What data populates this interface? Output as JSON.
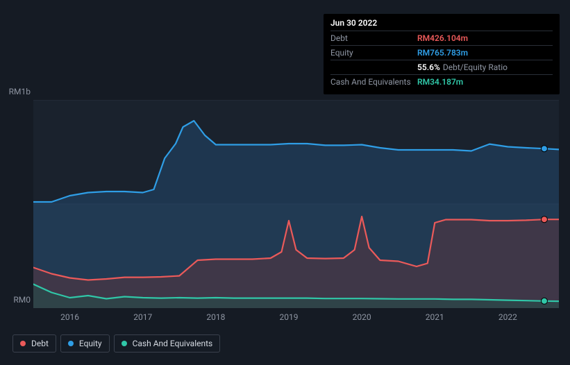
{
  "tooltip": {
    "date": "Jun 30 2022",
    "rows": [
      {
        "label": "Debt",
        "value": "RM426.104m",
        "color": "#eb5a5a",
        "suffix": ""
      },
      {
        "label": "Equity",
        "value": "RM765.783m",
        "color": "#2f9ee6",
        "suffix": ""
      },
      {
        "label": "",
        "value": "55.6%",
        "color": "#ffffff",
        "suffix": "Debt/Equity Ratio"
      },
      {
        "label": "Cash And Equivalents",
        "value": "RM34.187m",
        "color": "#30c7a8",
        "suffix": ""
      }
    ]
  },
  "chart": {
    "type": "area",
    "background": "#151b24",
    "plot_background_top": "#1a222d",
    "plot_background_bottom": "#1f2a37",
    "grid_color": "#2a3240",
    "ylabel_top": "RM1b",
    "ylabel_bottom": "RM0",
    "y_min": 0,
    "y_max": 1000,
    "y_gridlines": [
      0,
      500,
      1000
    ],
    "x_start": 2015.5,
    "x_end": 2022.7,
    "x_ticks": [
      2016,
      2017,
      2018,
      2019,
      2020,
      2021,
      2022
    ],
    "x_labels": [
      "2016",
      "2017",
      "2018",
      "2019",
      "2020",
      "2021",
      "2022"
    ],
    "marker_x": 2022.5,
    "series": [
      {
        "name": "Equity",
        "stroke": "#2f9ee6",
        "fill": "#22476b",
        "fill_opacity": 0.55,
        "stroke_width": 2.2,
        "data": [
          [
            2015.5,
            510
          ],
          [
            2015.75,
            510
          ],
          [
            2016.0,
            540
          ],
          [
            2016.25,
            555
          ],
          [
            2016.5,
            560
          ],
          [
            2016.75,
            560
          ],
          [
            2017.0,
            555
          ],
          [
            2017.15,
            570
          ],
          [
            2017.3,
            720
          ],
          [
            2017.45,
            790
          ],
          [
            2017.55,
            870
          ],
          [
            2017.7,
            900
          ],
          [
            2017.85,
            830
          ],
          [
            2018.0,
            785
          ],
          [
            2018.25,
            785
          ],
          [
            2018.5,
            785
          ],
          [
            2018.75,
            785
          ],
          [
            2019.0,
            790
          ],
          [
            2019.25,
            790
          ],
          [
            2019.5,
            782
          ],
          [
            2019.75,
            782
          ],
          [
            2020.0,
            785
          ],
          [
            2020.25,
            770
          ],
          [
            2020.5,
            760
          ],
          [
            2020.75,
            760
          ],
          [
            2021.0,
            760
          ],
          [
            2021.25,
            760
          ],
          [
            2021.5,
            755
          ],
          [
            2021.75,
            788
          ],
          [
            2022.0,
            775
          ],
          [
            2022.25,
            770
          ],
          [
            2022.5,
            766
          ],
          [
            2022.7,
            762
          ]
        ]
      },
      {
        "name": "Debt",
        "stroke": "#eb5a5a",
        "fill": "#5a3440",
        "fill_opacity": 0.55,
        "stroke_width": 2.2,
        "data": [
          [
            2015.5,
            195
          ],
          [
            2015.75,
            165
          ],
          [
            2016.0,
            145
          ],
          [
            2016.25,
            135
          ],
          [
            2016.5,
            140
          ],
          [
            2016.75,
            148
          ],
          [
            2017.0,
            148
          ],
          [
            2017.25,
            150
          ],
          [
            2017.5,
            155
          ],
          [
            2017.75,
            230
          ],
          [
            2018.0,
            235
          ],
          [
            2018.25,
            235
          ],
          [
            2018.5,
            235
          ],
          [
            2018.75,
            240
          ],
          [
            2018.9,
            270
          ],
          [
            2019.0,
            420
          ],
          [
            2019.1,
            280
          ],
          [
            2019.25,
            240
          ],
          [
            2019.5,
            238
          ],
          [
            2019.75,
            240
          ],
          [
            2019.9,
            280
          ],
          [
            2020.0,
            440
          ],
          [
            2020.1,
            290
          ],
          [
            2020.25,
            230
          ],
          [
            2020.5,
            225
          ],
          [
            2020.75,
            200
          ],
          [
            2020.9,
            215
          ],
          [
            2021.0,
            410
          ],
          [
            2021.15,
            425
          ],
          [
            2021.5,
            425
          ],
          [
            2021.75,
            420
          ],
          [
            2022.0,
            420
          ],
          [
            2022.25,
            422
          ],
          [
            2022.5,
            426
          ],
          [
            2022.7,
            426
          ]
        ]
      },
      {
        "name": "Cash And Equivalents",
        "stroke": "#30c7a8",
        "fill": "#254b4a",
        "fill_opacity": 0.6,
        "stroke_width": 2.2,
        "data": [
          [
            2015.5,
            115
          ],
          [
            2015.75,
            75
          ],
          [
            2016.0,
            50
          ],
          [
            2016.25,
            60
          ],
          [
            2016.5,
            45
          ],
          [
            2016.75,
            55
          ],
          [
            2017.0,
            50
          ],
          [
            2017.25,
            48
          ],
          [
            2017.5,
            50
          ],
          [
            2017.75,
            48
          ],
          [
            2018.0,
            50
          ],
          [
            2018.25,
            48
          ],
          [
            2018.5,
            48
          ],
          [
            2018.75,
            48
          ],
          [
            2019.0,
            48
          ],
          [
            2019.25,
            48
          ],
          [
            2019.5,
            46
          ],
          [
            2019.75,
            46
          ],
          [
            2020.0,
            46
          ],
          [
            2020.25,
            45
          ],
          [
            2020.5,
            44
          ],
          [
            2020.75,
            44
          ],
          [
            2021.0,
            44
          ],
          [
            2021.25,
            42
          ],
          [
            2021.5,
            42
          ],
          [
            2021.75,
            40
          ],
          [
            2022.0,
            38
          ],
          [
            2022.25,
            36
          ],
          [
            2022.5,
            34
          ],
          [
            2022.7,
            33
          ]
        ]
      }
    ],
    "legend": [
      {
        "label": "Debt",
        "color": "#eb5a5a"
      },
      {
        "label": "Equity",
        "color": "#2f9ee6"
      },
      {
        "label": "Cash And Equivalents",
        "color": "#30c7a8"
      }
    ]
  }
}
